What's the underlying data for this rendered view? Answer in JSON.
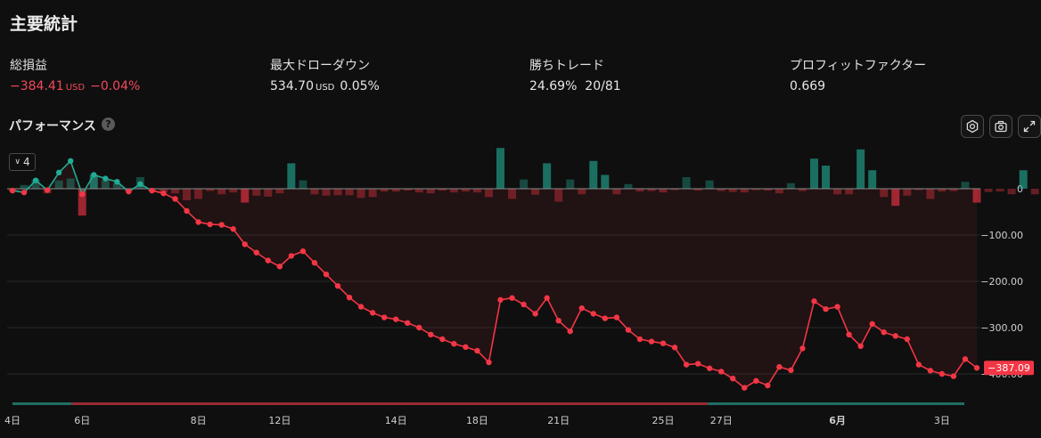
{
  "page": {
    "title": "主要統計"
  },
  "stats": [
    {
      "label": "総損益",
      "value": "−384.41",
      "unit": "USD",
      "extra": "−0.04%",
      "negative": true
    },
    {
      "label": "最大ドローダウン",
      "value": "534.70",
      "unit": "USD",
      "extra": "0.05%",
      "negative": false
    },
    {
      "label": "勝ちトレード",
      "value": "24.69%",
      "unit": "",
      "extra": "20/81",
      "negative": false
    },
    {
      "label": "プロフィットファクター",
      "value": "0.669",
      "unit": "",
      "extra": "",
      "negative": false
    }
  ],
  "performance": {
    "title": "パフォーマンス",
    "help_icon": "question-circle-icon",
    "zoom_label": "4",
    "tools": [
      "settings-icon",
      "camera-icon",
      "fullscreen-icon"
    ]
  },
  "chart_data": {
    "type": "line",
    "colors": {
      "positive": "#22ab94",
      "negative": "#f23645",
      "grid": "#2a2a2a",
      "zero": "#8a8a8a"
    },
    "ylim": [
      -450,
      50
    ],
    "yticks": [
      0,
      -100,
      -200,
      -300,
      -400
    ],
    "ytick_labels": [
      "0",
      "−100.00",
      "−200.00",
      "−300.00",
      "−400.00"
    ],
    "last_value_label": "−387.09",
    "xtick_labels": [
      "4日",
      "6日",
      "8日",
      "12日",
      "14日",
      "18日",
      "21日",
      "25日",
      "27日",
      "6月",
      "3日"
    ],
    "xtick_index": [
      0,
      6,
      16,
      23,
      33,
      40,
      47,
      56,
      61,
      71,
      80
    ],
    "series": [
      {
        "values": [
          -4,
          -8,
          18,
          -3,
          35,
          60,
          -12,
          30,
          22,
          15,
          -6,
          10,
          -4,
          -10,
          -22,
          -48,
          -72,
          -77,
          -78,
          -87,
          -120,
          -138,
          -155,
          -168,
          -145,
          -135,
          -160,
          -185,
          -210,
          -235,
          -255,
          -268,
          -278,
          -282,
          -290,
          -300,
          -315,
          -325,
          -335,
          -342,
          -350,
          -375,
          -240,
          -236,
          -250,
          -270,
          -236,
          -285,
          -308,
          -258,
          -270,
          -280,
          -278,
          -305,
          -325,
          -330,
          -334,
          -343,
          -380,
          -378,
          -388,
          -395,
          -410,
          -430,
          -415,
          -425,
          -385,
          -392,
          -345,
          -243,
          -260,
          -255,
          -315,
          -340,
          -292,
          -310,
          -318,
          -325,
          -380,
          -393,
          -400,
          -405,
          -368,
          -387
        ]
      },
      {
        "name": "trades",
        "values": [
          -5,
          8,
          20,
          -10,
          18,
          22,
          -58,
          30,
          18,
          12,
          -6,
          25,
          -5,
          -8,
          -10,
          -25,
          -22,
          -5,
          -12,
          -8,
          -30,
          -15,
          -17,
          -10,
          55,
          18,
          -12,
          -15,
          -14,
          -14,
          -20,
          -18,
          -6,
          -6,
          -4,
          -8,
          -10,
          -4,
          -8,
          -6,
          -8,
          -18,
          88,
          -22,
          20,
          -13,
          55,
          -28,
          20,
          -12,
          60,
          30,
          -12,
          10,
          -6,
          -5,
          -8,
          -2,
          25,
          -4,
          18,
          -5,
          -7,
          -8,
          -3,
          -4,
          -10,
          12,
          -5,
          65,
          50,
          -12,
          -12,
          85,
          40,
          -18,
          -37,
          -15,
          -3,
          -22,
          -6,
          -5,
          15,
          -30,
          -7,
          -6,
          -12,
          40,
          -12
        ]
      }
    ]
  }
}
